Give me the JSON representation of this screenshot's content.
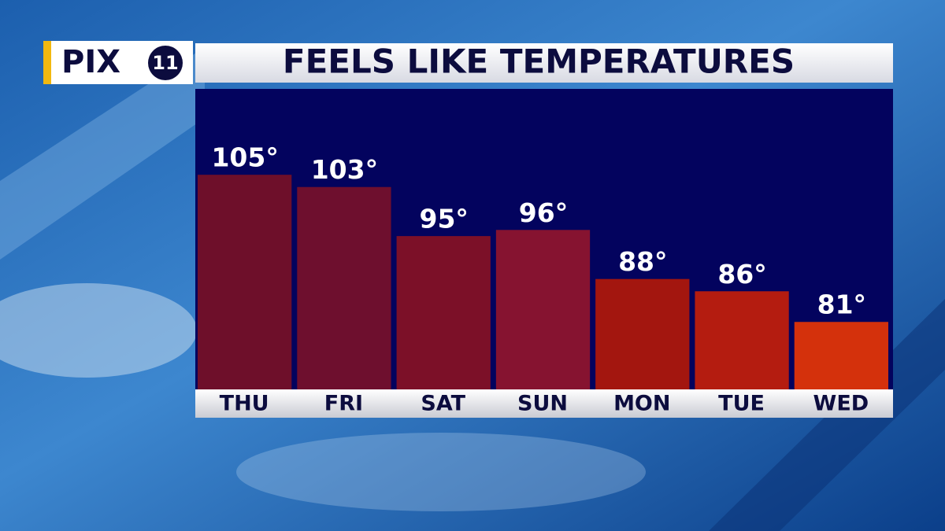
{
  "branding": {
    "name": "PIX",
    "channel": "11"
  },
  "chart_data": {
    "type": "bar",
    "title": "FEELS LIKE TEMPERATURES",
    "categories": [
      "THU",
      "FRI",
      "SAT",
      "SUN",
      "MON",
      "TUE",
      "WED"
    ],
    "values": [
      105,
      103,
      95,
      96,
      88,
      86,
      81
    ],
    "value_labels": [
      "105°",
      "103°",
      "95°",
      "96°",
      "88°",
      "86°",
      "81°"
    ],
    "colors": [
      "#6e0f2a",
      "#6e0f2e",
      "#7c1028",
      "#861330",
      "#a3160f",
      "#b41c10",
      "#d4310c"
    ],
    "ylim": [
      70,
      119
    ]
  }
}
